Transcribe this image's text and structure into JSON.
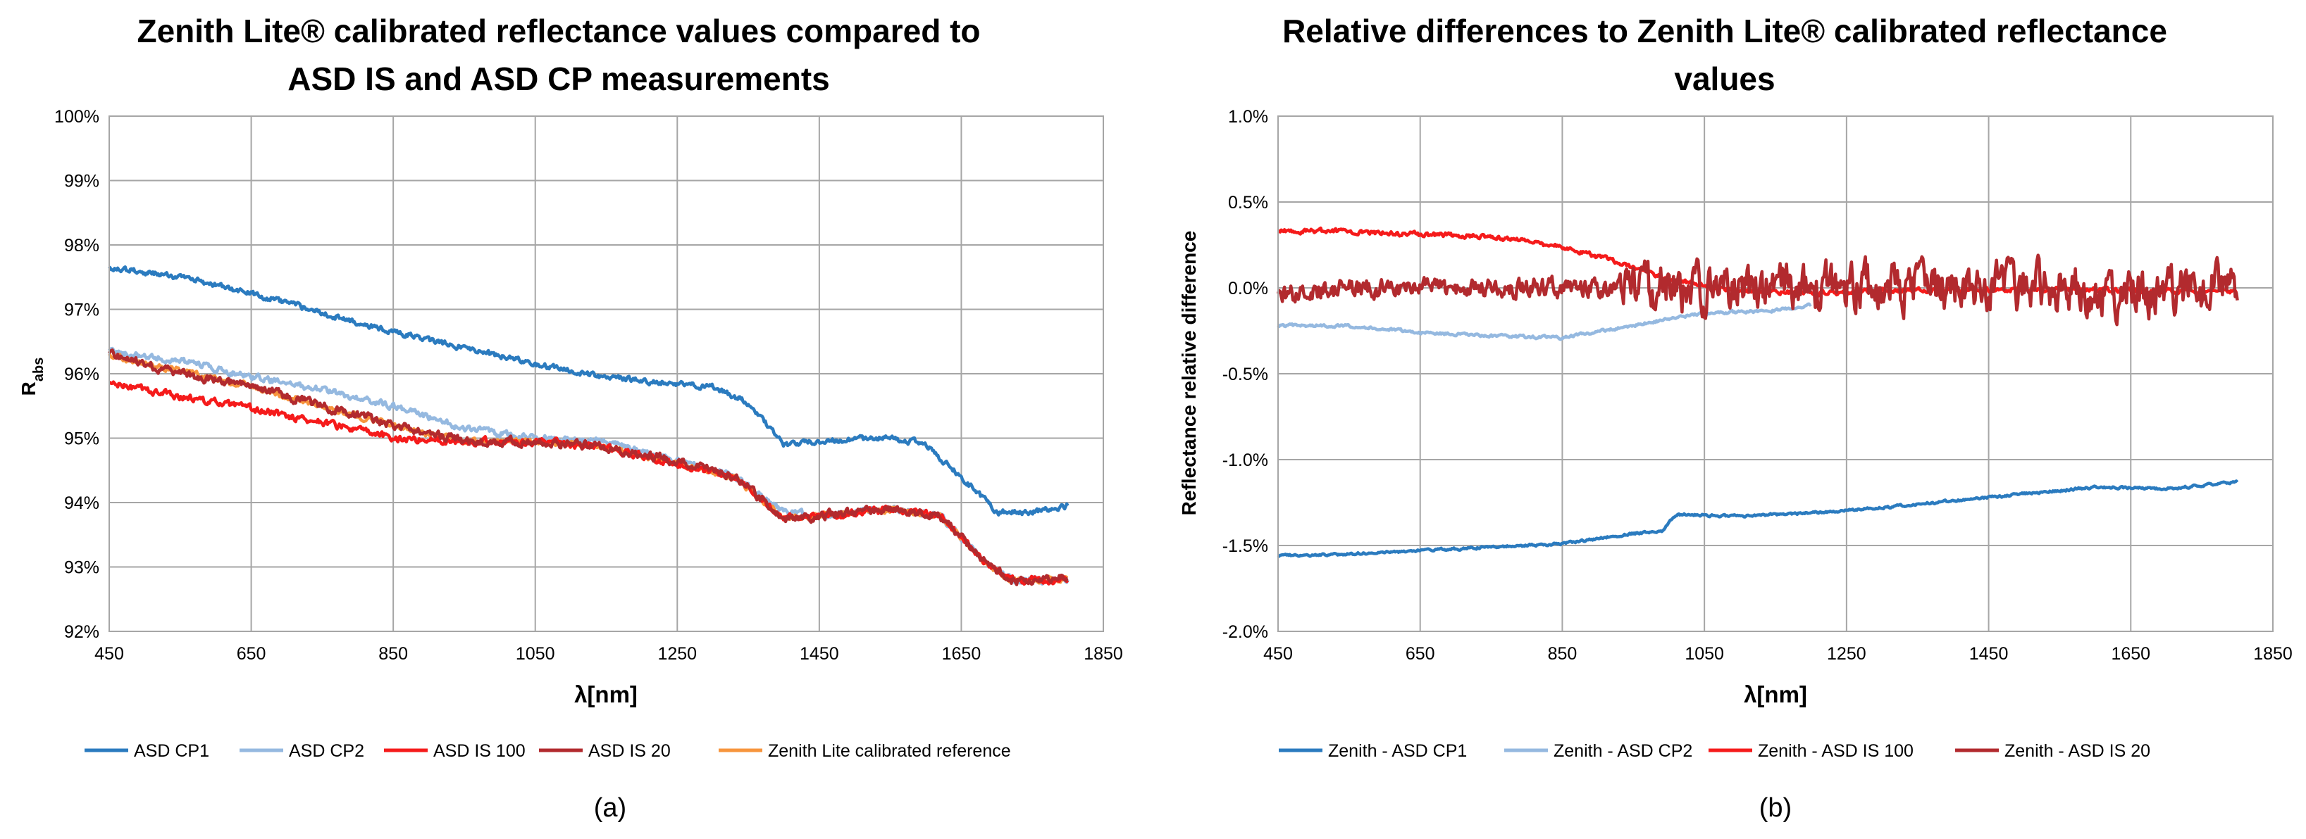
{
  "chart_data": [
    {
      "type": "line",
      "panel_label": "(a)",
      "title_lines": [
        "Zenith Lite® calibrated reflectance values compared to",
        "ASD IS and ASD CP measurements"
      ],
      "xlabel": "λ[nm]",
      "ylabel": "R",
      "ylabel_sub": "abs",
      "xlim": [
        450,
        1850
      ],
      "ylim": [
        92,
        100
      ],
      "xticks": [
        450,
        650,
        850,
        1050,
        1250,
        1450,
        1650,
        1850
      ],
      "yticks": [
        92,
        93,
        94,
        95,
        96,
        97,
        98,
        99,
        100
      ],
      "ytick_labels": [
        "92%",
        "93%",
        "94%",
        "95%",
        "96%",
        "97%",
        "98%",
        "99%",
        "100%"
      ],
      "grid": true,
      "legend_position": "bottom",
      "series": [
        {
          "name": "ASD CP2",
          "color": "#95b9e0",
          "noise": 0.09,
          "x": [
            450,
            550,
            650,
            750,
            850,
            950,
            1050,
            1150,
            1250,
            1330,
            1400,
            1450,
            1550,
            1620,
            1680,
            1720,
            1760,
            1800
          ],
          "y": [
            96.35,
            96.2,
            95.95,
            95.75,
            95.5,
            95.15,
            95.0,
            94.95,
            94.65,
            94.4,
            93.85,
            93.8,
            93.9,
            93.8,
            93.1,
            92.8,
            92.8,
            92.8
          ]
        },
        {
          "name": "Zenith Lite calibrated reference",
          "color": "#f7953d",
          "noise": 0.08,
          "x": [
            450,
            550,
            650,
            750,
            850,
            950,
            1050,
            1150,
            1250,
            1330,
            1400,
            1450,
            1550,
            1620,
            1680,
            1720,
            1760,
            1800
          ],
          "y": [
            96.3,
            96.05,
            95.8,
            95.5,
            95.2,
            94.95,
            94.95,
            94.85,
            94.6,
            94.4,
            93.75,
            93.8,
            93.9,
            93.8,
            93.1,
            92.8,
            92.8,
            92.8
          ]
        },
        {
          "name": "ASD IS 100",
          "color": "#f51b1b",
          "noise": 0.1,
          "x": [
            450,
            550,
            650,
            750,
            850,
            950,
            1050,
            1150,
            1250,
            1330,
            1400,
            1450,
            1550,
            1620,
            1680,
            1720,
            1760,
            1800
          ],
          "y": [
            95.85,
            95.65,
            95.45,
            95.25,
            95.0,
            94.95,
            94.95,
            94.85,
            94.6,
            94.4,
            93.75,
            93.8,
            93.9,
            93.8,
            93.1,
            92.8,
            92.8,
            92.8
          ]
        },
        {
          "name": "ASD IS 20",
          "color": "#b22a2e",
          "noise": 0.12,
          "x": [
            450,
            550,
            650,
            750,
            850,
            950,
            1050,
            1150,
            1250,
            1330,
            1400,
            1450,
            1550,
            1620,
            1680,
            1720,
            1760,
            1800
          ],
          "y": [
            96.3,
            96.0,
            95.8,
            95.5,
            95.2,
            94.95,
            94.95,
            94.85,
            94.65,
            94.4,
            93.75,
            93.8,
            93.9,
            93.8,
            93.1,
            92.8,
            92.8,
            92.85
          ]
        },
        {
          "name": "ASD CP1",
          "color": "#2b7bbf",
          "noise": 0.08,
          "x": [
            450,
            550,
            650,
            750,
            850,
            950,
            1050,
            1150,
            1250,
            1300,
            1350,
            1400,
            1450,
            1550,
            1600,
            1650,
            1700,
            1750,
            1800
          ],
          "y": [
            97.65,
            97.5,
            97.25,
            96.95,
            96.65,
            96.4,
            96.15,
            95.95,
            95.85,
            95.8,
            95.55,
            94.9,
            94.95,
            95.0,
            94.9,
            94.4,
            93.85,
            93.85,
            93.95
          ]
        }
      ],
      "legend_order": [
        "ASD CP1",
        "ASD CP2",
        "ASD IS 100",
        "ASD IS 20",
        "Zenith Lite calibrated reference"
      ]
    },
    {
      "type": "line",
      "panel_label": "(b)",
      "title_lines": [
        "Relative differences to Zenith Lite® calibrated reflectance",
        "values"
      ],
      "xlabel": "λ[nm]",
      "ylabel": "Reflectance relative difference",
      "xlim": [
        450,
        1850
      ],
      "ylim": [
        -2.0,
        1.0
      ],
      "xticks": [
        450,
        650,
        850,
        1050,
        1250,
        1450,
        1650,
        1850
      ],
      "yticks": [
        -2.0,
        -1.5,
        -1.0,
        -0.5,
        0.0,
        0.5,
        1.0
      ],
      "ytick_labels": [
        "-2.0%",
        "-1.5%",
        "-1.0%",
        "-0.5%",
        "0.0%",
        "0.5%",
        "1.0%"
      ],
      "grid": true,
      "legend_position": "bottom",
      "series": [
        {
          "name": "Zenith - ASD CP2",
          "color": "#95b9e0",
          "noise": 0.015,
          "x": [
            450,
            550,
            650,
            750,
            850,
            950,
            1000,
            1050,
            1150,
            1200
          ],
          "y": [
            -0.22,
            -0.22,
            -0.26,
            -0.28,
            -0.29,
            -0.22,
            -0.18,
            -0.15,
            -0.13,
            -0.1
          ]
        },
        {
          "name": "Zenith - ASD IS 100",
          "color": "#f51b1b",
          "noise": 0.025,
          "x": [
            450,
            550,
            650,
            750,
            850,
            950,
            1000,
            1100,
            1200,
            1300,
            1400,
            1500,
            1600,
            1700,
            1800
          ],
          "y": [
            0.33,
            0.33,
            0.31,
            0.3,
            0.24,
            0.12,
            0.05,
            -0.02,
            -0.03,
            -0.02,
            -0.01,
            -0.01,
            -0.01,
            -0.02,
            -0.02
          ]
        },
        {
          "name": "Zenith - ASD IS 20",
          "color": "#b22a2e",
          "noise": 0.1,
          "x": [
            450,
            550,
            650,
            750,
            850,
            950,
            1050,
            1150,
            1250,
            1350,
            1450,
            1550,
            1650,
            1750,
            1800
          ],
          "y": [
            -0.05,
            0.0,
            0.0,
            0.0,
            0.0,
            0.0,
            -0.02,
            0.0,
            0.0,
            0.0,
            0.0,
            0.0,
            -0.05,
            0.0,
            0.0
          ]
        },
        {
          "name": "Zenith - ASD CP1",
          "color": "#2b7bbf",
          "noise": 0.012,
          "x": [
            450,
            550,
            650,
            750,
            850,
            950,
            990,
            1010,
            1100,
            1200,
            1300,
            1400,
            1500,
            1600,
            1700,
            1800
          ],
          "y": [
            -1.56,
            -1.55,
            -1.53,
            -1.51,
            -1.49,
            -1.43,
            -1.42,
            -1.32,
            -1.33,
            -1.31,
            -1.28,
            -1.24,
            -1.2,
            -1.16,
            -1.17,
            -1.13
          ]
        }
      ],
      "legend_order": [
        "Zenith - ASD CP1",
        "Zenith - ASD CP2",
        "Zenith - ASD IS 100",
        "Zenith - ASD IS 20"
      ]
    }
  ]
}
